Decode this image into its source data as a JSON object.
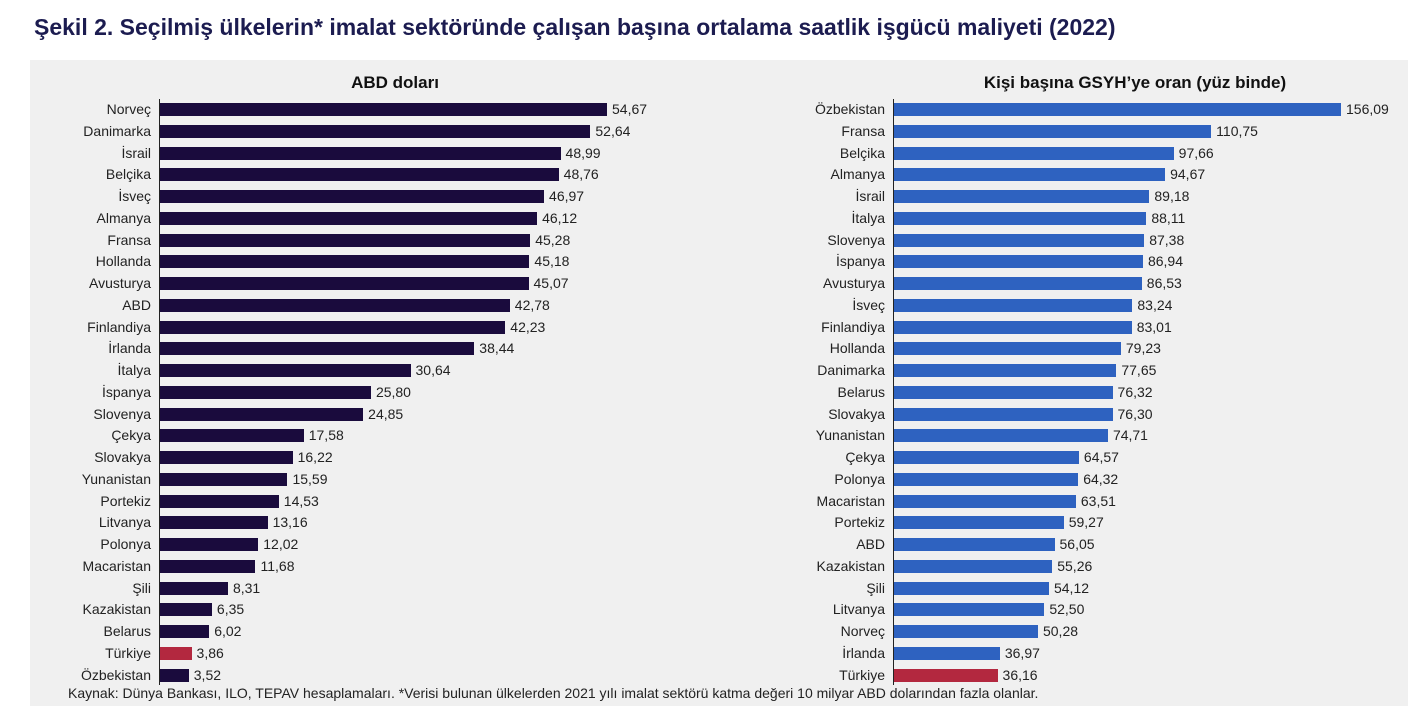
{
  "title": "Şekil 2. Seçilmiş ülkelerin* imalat sektöründe çalışan başına ortalama saatlik işgücü maliyeti (2022)",
  "footnote": "Kaynak: Dünya Bankası, ILO, TEPAV hesaplamaları. *Verisi bulunan ülkelerden 2021 yılı imalat sektörü katma değeri 10 milyar ABD dolarından fazla olanlar.",
  "colors": {
    "left_bar": "#1a0b3d",
    "right_bar": "#2e62c0",
    "highlight": "#b3283f"
  },
  "chart_data": [
    {
      "type": "bar",
      "orientation": "horizontal",
      "title": "ABD doları",
      "highlight": "Türkiye",
      "categories": [
        "Norveç",
        "Danimarka",
        "İsrail",
        "Belçika",
        "İsveç",
        "Almanya",
        "Fransa",
        "Hollanda",
        "Avusturya",
        "ABD",
        "Finlandiya",
        "İrlanda",
        "İtalya",
        "İspanya",
        "Slovenya",
        "Çekya",
        "Slovakya",
        "Yunanistan",
        "Portekiz",
        "Litvanya",
        "Polonya",
        "Macaristan",
        "Şili",
        "Kazakistan",
        "Belarus",
        "Türkiye",
        "Özbekistan"
      ],
      "values": [
        54.67,
        52.64,
        48.99,
        48.76,
        46.97,
        46.12,
        45.28,
        45.18,
        45.07,
        42.78,
        42.23,
        38.44,
        30.64,
        25.8,
        24.85,
        17.58,
        16.22,
        15.59,
        14.53,
        13.16,
        12.02,
        11.68,
        8.31,
        6.35,
        6.02,
        3.86,
        3.52
      ],
      "labels": [
        "54,67",
        "52,64",
        "48,99",
        "48,76",
        "46,97",
        "46,12",
        "45,28",
        "45,18",
        "45,07",
        "42,78",
        "42,23",
        "38,44",
        "30,64",
        "25,80",
        "24,85",
        "17,58",
        "16,22",
        "15,59",
        "14,53",
        "13,16",
        "12,02",
        "11,68",
        "8,31",
        "6,35",
        "6,02",
        "3,86",
        "3,52"
      ],
      "xlim": [
        0,
        54.67
      ]
    },
    {
      "type": "bar",
      "orientation": "horizontal",
      "title": "Kişi başına GSYH’ye oran (yüz binde)",
      "highlight": "Türkiye",
      "categories": [
        "Özbekistan",
        "Fransa",
        "Belçika",
        "Almanya",
        "İsrail",
        "İtalya",
        "Slovenya",
        "İspanya",
        "Avusturya",
        "İsveç",
        "Finlandiya",
        "Hollanda",
        "Danimarka",
        "Belarus",
        "Slovakya",
        "Yunanistan",
        "Çekya",
        "Polonya",
        "Macaristan",
        "Portekiz",
        "ABD",
        "Kazakistan",
        "Şili",
        "Litvanya",
        "Norveç",
        "İrlanda",
        "Türkiye"
      ],
      "values": [
        156.09,
        110.75,
        97.66,
        94.67,
        89.18,
        88.11,
        87.38,
        86.94,
        86.53,
        83.24,
        83.01,
        79.23,
        77.65,
        76.32,
        76.3,
        74.71,
        64.57,
        64.32,
        63.51,
        59.27,
        56.05,
        55.26,
        54.12,
        52.5,
        50.28,
        36.97,
        36.16
      ],
      "labels": [
        "156,09",
        "110,75",
        "97,66",
        "94,67",
        "89,18",
        "88,11",
        "87,38",
        "86,94",
        "86,53",
        "83,24",
        "83,01",
        "79,23",
        "77,65",
        "76,32",
        "76,30",
        "74,71",
        "64,57",
        "64,32",
        "63,51",
        "59,27",
        "56,05",
        "55,26",
        "54,12",
        "52,50",
        "50,28",
        "36,97",
        "36,16"
      ],
      "xlim": [
        0,
        156.09
      ]
    }
  ]
}
